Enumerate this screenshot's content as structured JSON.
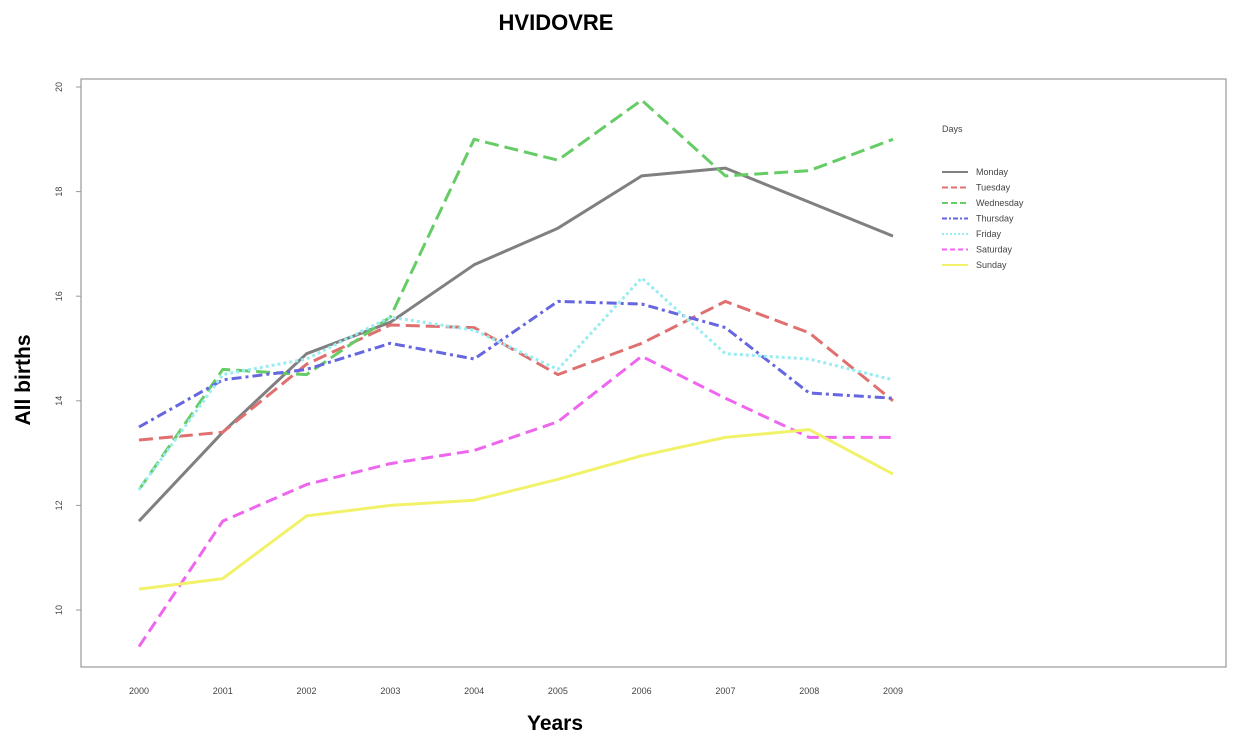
{
  "chart_data": {
    "type": "line",
    "title": "HVIDOVRE",
    "xlabel": "Years",
    "ylabel": "All births",
    "x": [
      2000,
      2001,
      2002,
      2003,
      2004,
      2005,
      2006,
      2007,
      2008,
      2009
    ],
    "xlim": [
      2000,
      2009
    ],
    "ylim": [
      9.3,
      20
    ],
    "yticks": [
      10,
      12,
      14,
      16,
      18,
      20
    ],
    "grid": false,
    "legend_title": "Days",
    "legend_position": "top-right",
    "series": [
      {
        "name": "Monday",
        "color": "#808080",
        "dash": "",
        "values": [
          11.7,
          13.4,
          14.9,
          15.5,
          16.6,
          17.3,
          18.3,
          18.45,
          17.8,
          17.15
        ]
      },
      {
        "name": "Tuesday",
        "color": "#e07070",
        "dash": "14,6",
        "values": [
          13.25,
          13.4,
          14.7,
          15.45,
          15.4,
          14.5,
          15.1,
          15.9,
          15.3,
          14.0
        ]
      },
      {
        "name": "Wednesday",
        "color": "#66cc66",
        "dash": "14,6",
        "values": [
          12.3,
          14.6,
          14.5,
          15.6,
          19.0,
          18.6,
          19.75,
          18.3,
          18.4,
          19.0
        ]
      },
      {
        "name": "Thursday",
        "color": "#6666e0",
        "dash": "10,4,3,4",
        "values": [
          13.5,
          14.4,
          14.6,
          15.1,
          14.8,
          15.9,
          15.85,
          15.4,
          14.15,
          14.05
        ]
      },
      {
        "name": "Friday",
        "color": "#99ecf2",
        "dash": "3,3",
        "values": [
          12.3,
          14.5,
          14.8,
          15.6,
          15.35,
          14.6,
          16.35,
          14.9,
          14.8,
          14.4
        ]
      },
      {
        "name": "Saturday",
        "color": "#ee66ee",
        "dash": "12,6",
        "values": [
          9.3,
          11.7,
          12.4,
          12.8,
          13.05,
          13.6,
          14.85,
          14.05,
          13.3,
          13.3
        ]
      },
      {
        "name": "Sunday",
        "color": "#f2f26a",
        "dash": "",
        "values": [
          10.4,
          10.6,
          11.8,
          12.0,
          12.1,
          12.5,
          12.95,
          13.3,
          13.45,
          12.6
        ]
      }
    ]
  }
}
